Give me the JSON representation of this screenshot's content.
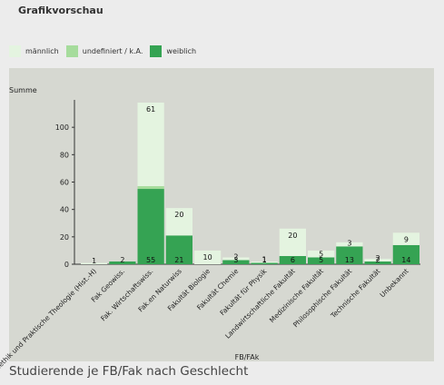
{
  "header": {
    "title": "Grafikvorschau"
  },
  "legend": {
    "items": [
      {
        "label": "männlich",
        "color": "#e4f4e0"
      },
      {
        "label": "undefiniert / k.A.",
        "color": "#a6dc9c"
      },
      {
        "label": "weiblich",
        "color": "#35a353"
      }
    ]
  },
  "caption": "Studierende je FB/Fak nach Geschlecht",
  "chart_data": {
    "type": "bar",
    "stacked": true,
    "ylabel": "Summe",
    "xlabel": "FB/FAk",
    "ylim": [
      0,
      120
    ],
    "yticks": [
      0,
      20,
      40,
      60,
      80,
      100
    ],
    "categories": [
      "Sozialethik und Praktische Theologie (Hist.-H)",
      "Fak Geowiss.",
      "Fak. Wirtschaftswiss.",
      "Fak.en Naturwiss",
      "Fakultät Biologie",
      "Fakultät Chemie",
      "Fakultät für Physik",
      "Landwirtschaftliche Fakultät",
      "Medizinische Fakultät",
      "Philosophische Fakultät",
      "Technische Fakultät",
      "Unbekannt"
    ],
    "series": [
      {
        "name": "weiblich",
        "color": "#35a353",
        "values": [
          0,
          2,
          55,
          21,
          0,
          3,
          1,
          6,
          5,
          13,
          2,
          14
        ]
      },
      {
        "name": "undefiniert / k.A.",
        "color": "#a6dc9c",
        "values": [
          0,
          0,
          2,
          0,
          0,
          0,
          0,
          0,
          0,
          0,
          0,
          0
        ]
      },
      {
        "name": "männlich",
        "color": "#e4f4e0",
        "values": [
          1,
          0,
          61,
          20,
          10,
          2,
          1,
          20,
          5,
          3,
          2,
          9
        ]
      }
    ]
  }
}
